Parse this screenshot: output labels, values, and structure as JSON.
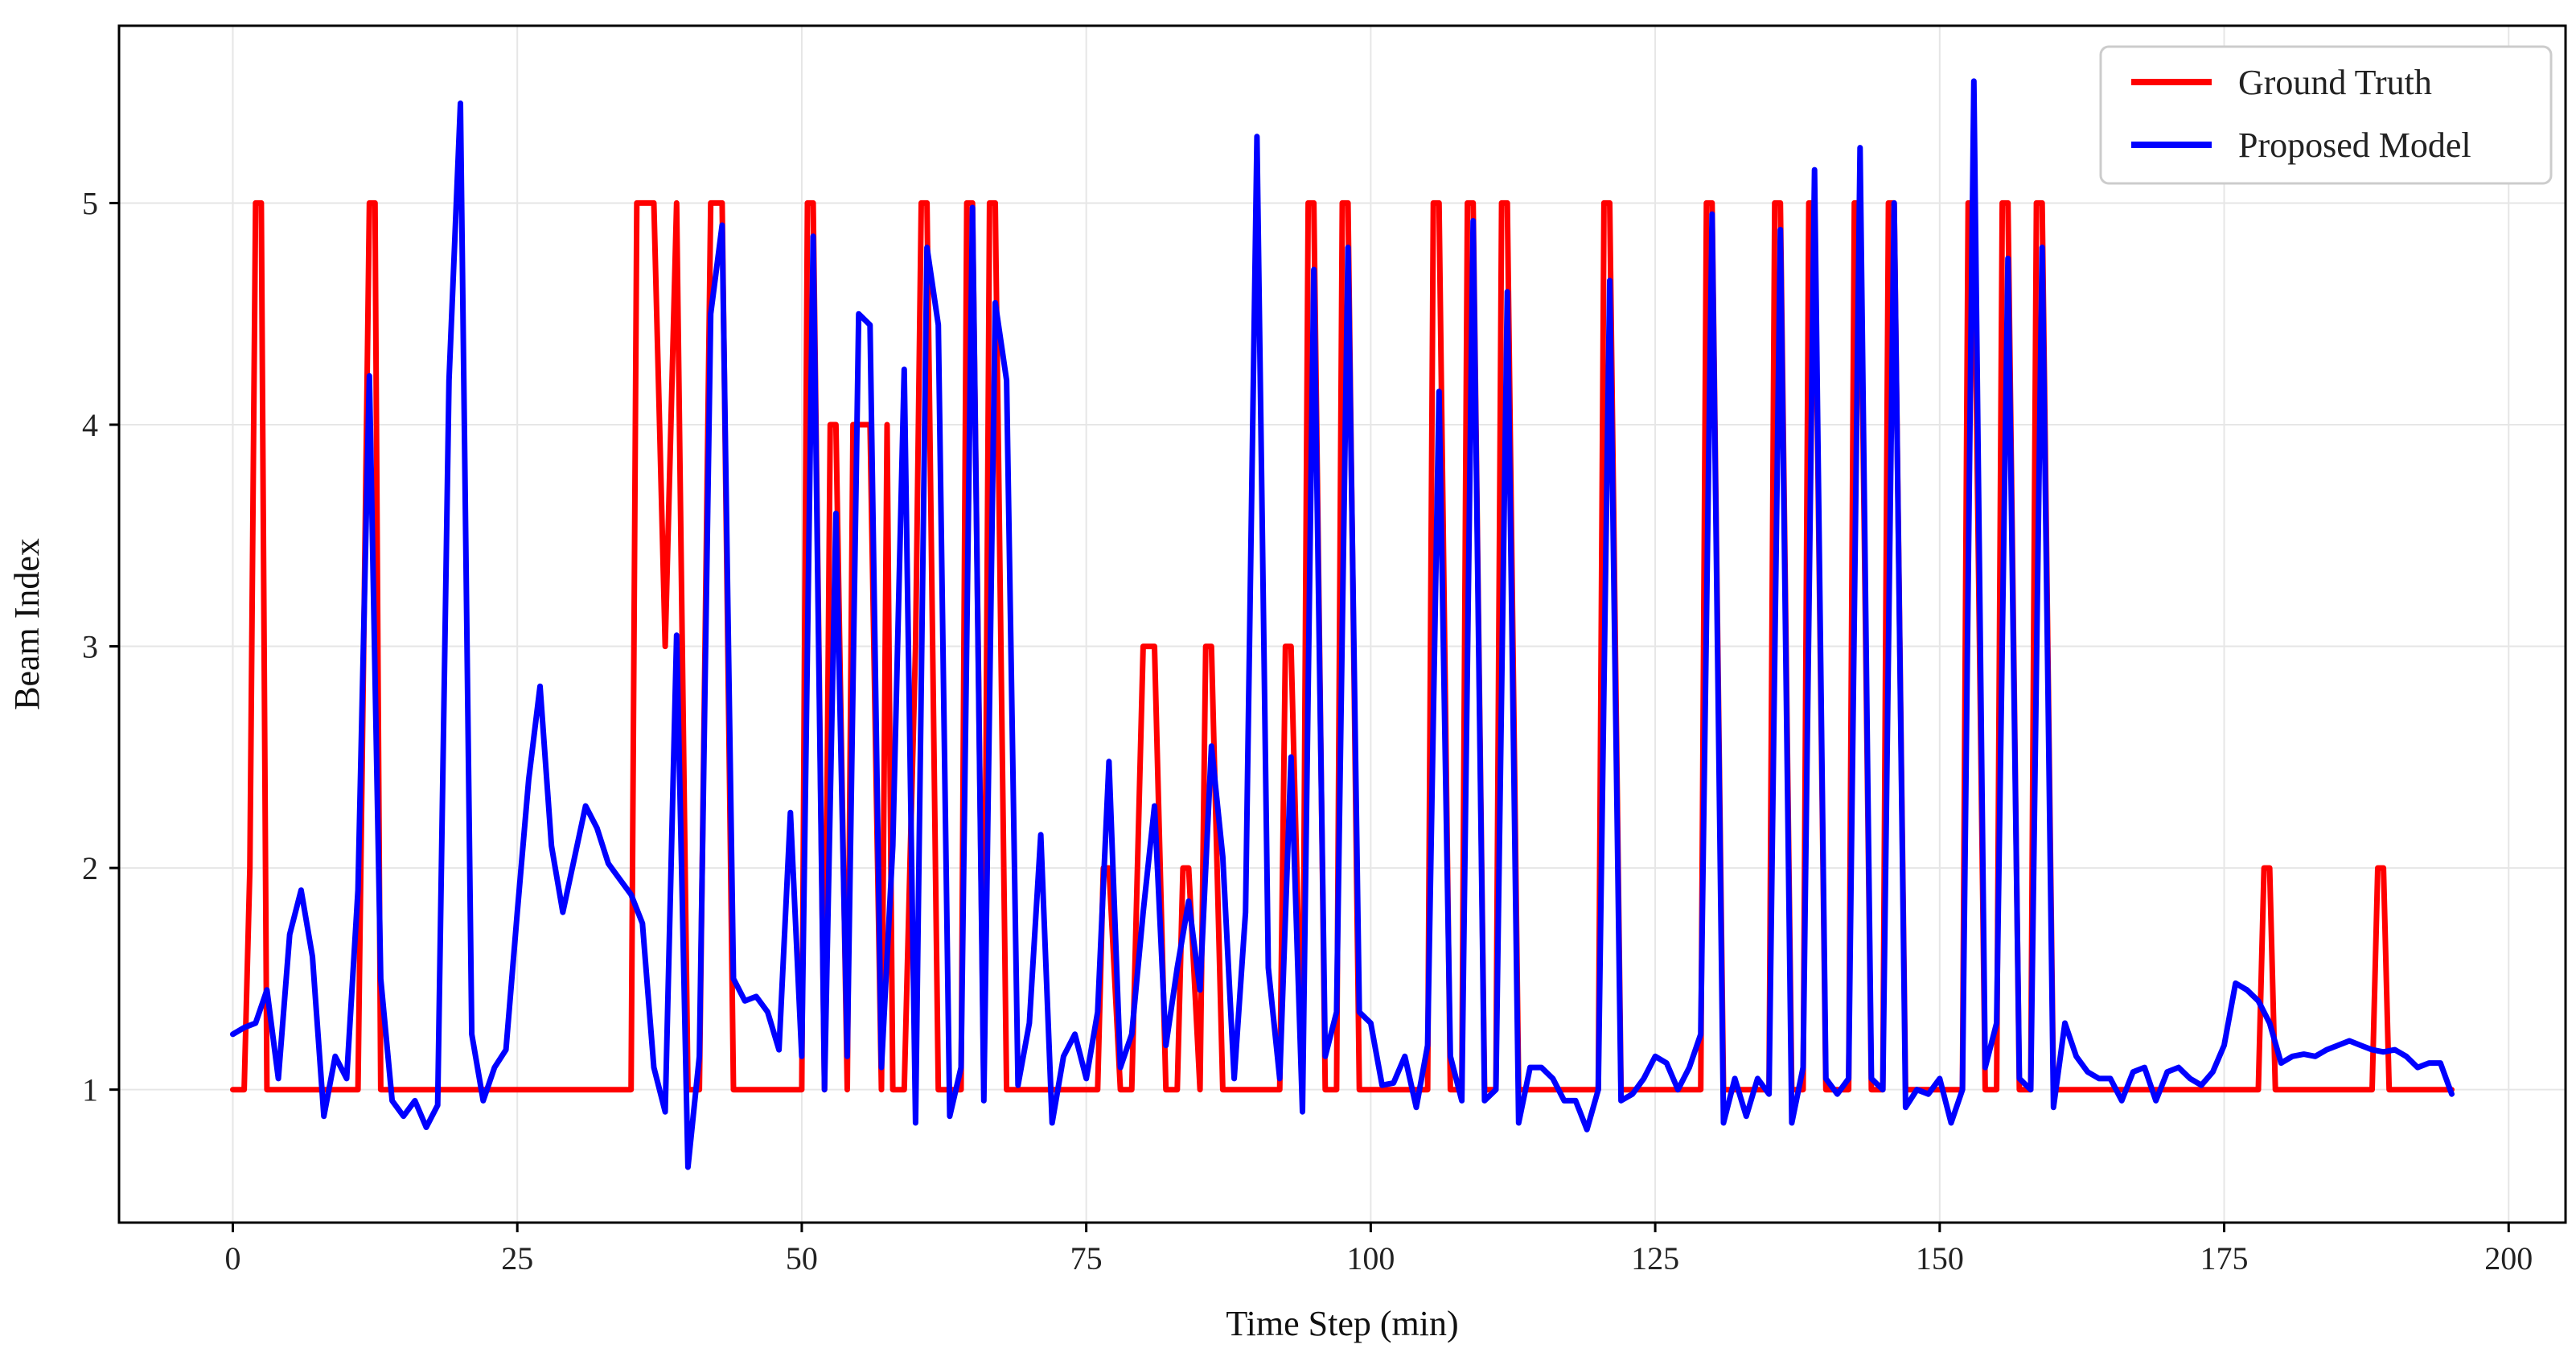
{
  "chart_data": {
    "type": "line",
    "title": "",
    "xlabel": "Time Step (min)",
    "ylabel": "Beam Index",
    "xlim": [
      -10,
      205
    ],
    "ylim": [
      0.4,
      5.8
    ],
    "xticks": [
      0,
      25,
      50,
      75,
      100,
      125,
      150,
      175,
      200
    ],
    "yticks": [
      1,
      2,
      3,
      4,
      5
    ],
    "grid": true,
    "legend_position": "top-right",
    "series": [
      {
        "name": "Ground Truth",
        "color": "#ff0000",
        "points": [
          [
            0,
            1
          ],
          [
            1,
            1
          ],
          [
            1.5,
            2
          ],
          [
            2,
            5
          ],
          [
            2.5,
            5
          ],
          [
            3,
            1
          ],
          [
            11,
            1
          ],
          [
            11.5,
            3
          ],
          [
            12,
            5
          ],
          [
            12.5,
            5
          ],
          [
            13,
            1
          ],
          [
            35,
            1
          ],
          [
            35.5,
            5
          ],
          [
            37,
            5
          ],
          [
            37.5,
            4
          ],
          [
            38,
            3
          ],
          [
            38.5,
            4
          ],
          [
            39,
            5
          ],
          [
            40,
            1
          ],
          [
            41,
            1
          ],
          [
            42,
            5
          ],
          [
            43,
            5
          ],
          [
            44,
            1
          ],
          [
            50,
            1
          ],
          [
            50.5,
            5
          ],
          [
            51,
            5
          ],
          [
            52,
            1
          ],
          [
            52.5,
            4
          ],
          [
            53,
            4
          ],
          [
            54,
            1
          ],
          [
            54.5,
            4
          ],
          [
            56,
            4
          ],
          [
            57,
            1
          ],
          [
            57.5,
            4
          ],
          [
            58,
            1
          ],
          [
            59,
            1
          ],
          [
            60,
            3
          ],
          [
            60.5,
            5
          ],
          [
            61,
            5
          ],
          [
            62,
            1
          ],
          [
            64,
            1
          ],
          [
            64.5,
            5
          ],
          [
            65,
            5
          ],
          [
            66,
            1
          ],
          [
            66.5,
            5
          ],
          [
            67,
            5
          ],
          [
            68,
            1
          ],
          [
            76,
            1
          ],
          [
            76.5,
            2
          ],
          [
            77,
            2
          ],
          [
            78,
            1
          ],
          [
            79,
            1
          ],
          [
            80,
            3
          ],
          [
            81,
            3
          ],
          [
            82,
            1
          ],
          [
            83,
            1
          ],
          [
            83.5,
            2
          ],
          [
            84,
            2
          ],
          [
            85,
            1
          ],
          [
            85.5,
            3
          ],
          [
            86,
            3
          ],
          [
            87,
            1
          ],
          [
            92,
            1
          ],
          [
            92.5,
            3
          ],
          [
            93,
            3
          ],
          [
            94,
            1
          ],
          [
            94.5,
            5
          ],
          [
            95,
            5
          ],
          [
            96,
            1
          ],
          [
            97,
            1
          ],
          [
            97.5,
            5
          ],
          [
            98,
            5
          ],
          [
            99,
            1
          ],
          [
            105,
            1
          ],
          [
            105.5,
            5
          ],
          [
            106,
            5
          ],
          [
            107,
            1
          ],
          [
            108,
            1
          ],
          [
            108.5,
            5
          ],
          [
            109,
            5
          ],
          [
            110,
            1
          ],
          [
            111,
            1
          ],
          [
            111.5,
            5
          ],
          [
            112,
            5
          ],
          [
            113,
            1
          ],
          [
            119,
            1
          ],
          [
            120,
            1
          ],
          [
            120.5,
            5
          ],
          [
            121,
            5
          ],
          [
            122,
            1
          ],
          [
            129,
            1
          ],
          [
            129.5,
            5
          ],
          [
            130,
            5
          ],
          [
            131,
            1
          ],
          [
            135,
            1
          ],
          [
            135.5,
            5
          ],
          [
            136,
            5
          ],
          [
            137,
            1
          ],
          [
            138,
            1
          ],
          [
            138.5,
            5
          ],
          [
            139,
            5
          ],
          [
            140,
            1
          ],
          [
            142,
            1
          ],
          [
            142.5,
            5
          ],
          [
            143,
            5
          ],
          [
            144,
            1
          ],
          [
            145,
            1
          ],
          [
            145.5,
            5
          ],
          [
            146,
            5
          ],
          [
            147,
            1
          ],
          [
            152,
            1
          ],
          [
            152.5,
            5
          ],
          [
            153,
            5
          ],
          [
            154,
            1
          ],
          [
            155,
            1
          ],
          [
            155.5,
            5
          ],
          [
            156,
            5
          ],
          [
            157,
            1
          ],
          [
            158,
            1
          ],
          [
            158.5,
            5
          ],
          [
            159,
            5
          ],
          [
            160,
            1
          ],
          [
            178,
            1
          ],
          [
            178.5,
            2
          ],
          [
            179,
            2
          ],
          [
            179.5,
            1
          ],
          [
            188,
            1
          ],
          [
            188.5,
            2
          ],
          [
            189,
            2
          ],
          [
            189.5,
            1
          ],
          [
            195,
            1
          ]
        ]
      },
      {
        "name": "Proposed Model",
        "color": "#0000ff",
        "points": [
          [
            0,
            1.25
          ],
          [
            1,
            1.28
          ],
          [
            2,
            1.3
          ],
          [
            3,
            1.45
          ],
          [
            4,
            1.05
          ],
          [
            5,
            1.7
          ],
          [
            6,
            1.9
          ],
          [
            7,
            1.6
          ],
          [
            8,
            0.88
          ],
          [
            9,
            1.15
          ],
          [
            10,
            1.05
          ],
          [
            11,
            1.9
          ],
          [
            12,
            4.22
          ],
          [
            13,
            1.5
          ],
          [
            14,
            0.95
          ],
          [
            15,
            0.88
          ],
          [
            16,
            0.95
          ],
          [
            17,
            0.83
          ],
          [
            18,
            0.93
          ],
          [
            19,
            4.2
          ],
          [
            20,
            5.45
          ],
          [
            21,
            1.25
          ],
          [
            22,
            0.95
          ],
          [
            23,
            1.1
          ],
          [
            24,
            1.18
          ],
          [
            25,
            1.8
          ],
          [
            26,
            2.4
          ],
          [
            27,
            2.82
          ],
          [
            28,
            2.1
          ],
          [
            29,
            1.8
          ],
          [
            31,
            2.28
          ],
          [
            32,
            2.18
          ],
          [
            33,
            2.02
          ],
          [
            34,
            1.95
          ],
          [
            35,
            1.88
          ],
          [
            36,
            1.75
          ],
          [
            37,
            1.1
          ],
          [
            38,
            0.9
          ],
          [
            39,
            3.05
          ],
          [
            40,
            0.65
          ],
          [
            41,
            1.15
          ],
          [
            42,
            4.5
          ],
          [
            43,
            4.9
          ],
          [
            44,
            1.5
          ],
          [
            45,
            1.4
          ],
          [
            46,
            1.42
          ],
          [
            47,
            1.35
          ],
          [
            48,
            1.18
          ],
          [
            49,
            2.25
          ],
          [
            50,
            1.15
          ],
          [
            51,
            4.85
          ],
          [
            52,
            1.0
          ],
          [
            53,
            3.6
          ],
          [
            54,
            1.15
          ],
          [
            55,
            4.5
          ],
          [
            56,
            4.45
          ],
          [
            57,
            1.1
          ],
          [
            58,
            2.1
          ],
          [
            59,
            4.25
          ],
          [
            60,
            0.85
          ],
          [
            61,
            4.8
          ],
          [
            62,
            4.45
          ],
          [
            63,
            0.88
          ],
          [
            64,
            1.1
          ],
          [
            65,
            4.98
          ],
          [
            66,
            0.95
          ],
          [
            67,
            4.55
          ],
          [
            68,
            4.2
          ],
          [
            69,
            1.02
          ],
          [
            70,
            1.3
          ],
          [
            71,
            2.15
          ],
          [
            72,
            0.85
          ],
          [
            73,
            1.15
          ],
          [
            74,
            1.25
          ],
          [
            75,
            1.05
          ],
          [
            76,
            1.35
          ],
          [
            77,
            2.48
          ],
          [
            78,
            1.1
          ],
          [
            79,
            1.25
          ],
          [
            80,
            1.8
          ],
          [
            81,
            2.28
          ],
          [
            82,
            1.2
          ],
          [
            83,
            1.55
          ],
          [
            84,
            1.85
          ],
          [
            85,
            1.45
          ],
          [
            86,
            2.55
          ],
          [
            87,
            2.05
          ],
          [
            88,
            1.05
          ],
          [
            89,
            1.8
          ],
          [
            90,
            5.3
          ],
          [
            91,
            1.55
          ],
          [
            92,
            1.05
          ],
          [
            93,
            2.5
          ],
          [
            94,
            0.9
          ],
          [
            95,
            4.7
          ],
          [
            96,
            1.15
          ],
          [
            97,
            1.35
          ],
          [
            98,
            4.8
          ],
          [
            99,
            1.35
          ],
          [
            100,
            1.3
          ],
          [
            101,
            1.02
          ],
          [
            102,
            1.03
          ],
          [
            103,
            1.15
          ],
          [
            104,
            0.92
          ],
          [
            105,
            1.2
          ],
          [
            106,
            4.15
          ],
          [
            107,
            1.15
          ],
          [
            108,
            0.95
          ],
          [
            109,
            4.92
          ],
          [
            110,
            0.95
          ],
          [
            111,
            1.0
          ],
          [
            112,
            4.6
          ],
          [
            113,
            0.85
          ],
          [
            114,
            1.1
          ],
          [
            115,
            1.1
          ],
          [
            116,
            1.05
          ],
          [
            117,
            0.95
          ],
          [
            118,
            0.95
          ],
          [
            119,
            0.82
          ],
          [
            120,
            1.0
          ],
          [
            121,
            4.65
          ],
          [
            122,
            0.95
          ],
          [
            123,
            0.98
          ],
          [
            124,
            1.05
          ],
          [
            125,
            1.15
          ],
          [
            126,
            1.12
          ],
          [
            127,
            1.0
          ],
          [
            128,
            1.1
          ],
          [
            129,
            1.25
          ],
          [
            130,
            4.95
          ],
          [
            131,
            0.85
          ],
          [
            132,
            1.05
          ],
          [
            133,
            0.88
          ],
          [
            134,
            1.05
          ],
          [
            135,
            0.98
          ],
          [
            136,
            4.88
          ],
          [
            137,
            0.85
          ],
          [
            138,
            1.1
          ],
          [
            139,
            5.15
          ],
          [
            140,
            1.05
          ],
          [
            141,
            0.98
          ],
          [
            142,
            1.05
          ],
          [
            143,
            5.25
          ],
          [
            144,
            1.05
          ],
          [
            145,
            1.0
          ],
          [
            146,
            5.0
          ],
          [
            147,
            0.92
          ],
          [
            148,
            1.0
          ],
          [
            149,
            0.98
          ],
          [
            150,
            1.05
          ],
          [
            151,
            0.85
          ],
          [
            152,
            1.0
          ],
          [
            153,
            5.55
          ],
          [
            154,
            1.1
          ],
          [
            155,
            1.3
          ],
          [
            156,
            4.75
          ],
          [
            157,
            1.05
          ],
          [
            158,
            1.0
          ],
          [
            159,
            4.8
          ],
          [
            160,
            0.92
          ],
          [
            161,
            1.3
          ],
          [
            162,
            1.15
          ],
          [
            163,
            1.08
          ],
          [
            164,
            1.05
          ],
          [
            165,
            1.05
          ],
          [
            166,
            0.95
          ],
          [
            167,
            1.08
          ],
          [
            168,
            1.1
          ],
          [
            169,
            0.95
          ],
          [
            170,
            1.08
          ],
          [
            171,
            1.1
          ],
          [
            172,
            1.05
          ],
          [
            173,
            1.02
          ],
          [
            174,
            1.08
          ],
          [
            175,
            1.2
          ],
          [
            176,
            1.48
          ],
          [
            177,
            1.45
          ],
          [
            178,
            1.4
          ],
          [
            179,
            1.3
          ],
          [
            180,
            1.12
          ],
          [
            181,
            1.15
          ],
          [
            182,
            1.16
          ],
          [
            183,
            1.15
          ],
          [
            184,
            1.18
          ],
          [
            185,
            1.2
          ],
          [
            186,
            1.22
          ],
          [
            187,
            1.2
          ],
          [
            188,
            1.18
          ],
          [
            189,
            1.17
          ],
          [
            190,
            1.18
          ],
          [
            191,
            1.15
          ],
          [
            192,
            1.1
          ],
          [
            193,
            1.12
          ],
          [
            194,
            1.12
          ],
          [
            195,
            0.98
          ]
        ]
      }
    ]
  }
}
